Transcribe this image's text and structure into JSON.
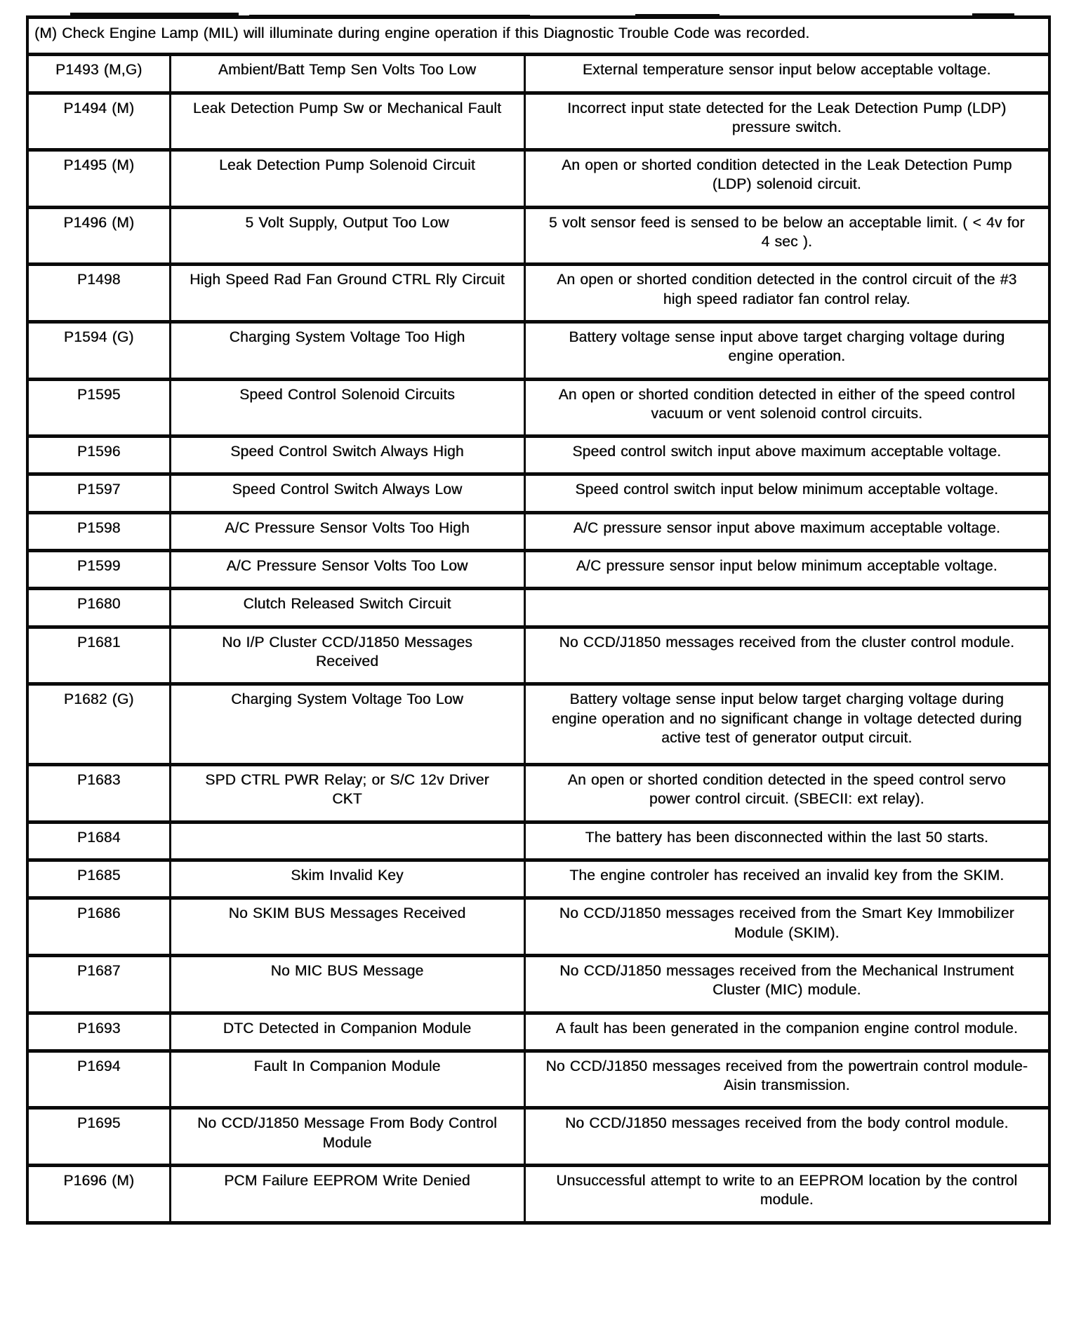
{
  "page": {
    "header_note": "(M) Check Engine Lamp (MIL) will illuminate during engine operation if this Diagnostic Trouble Code was recorded."
  },
  "table": {
    "columns": [
      "code",
      "name",
      "description"
    ],
    "rows": [
      {
        "code": "P1493 (M,G)",
        "name": "Ambient/Batt Temp Sen Volts Too Low",
        "description": "External temperature sensor input below acceptable voltage."
      },
      {
        "code": "P1494 (M)",
        "name": "Leak Detection Pump Sw or Mechanical Fault",
        "description": "Incorrect input state detected for the Leak Detection Pump (LDP) pressure switch."
      },
      {
        "code": "P1495 (M)",
        "name": "Leak Detection Pump Solenoid Circuit",
        "description": "An open or shorted condition detected in the Leak Detection Pump (LDP) solenoid circuit."
      },
      {
        "code": "P1496 (M)",
        "name": "5 Volt Supply, Output Too Low",
        "description": "5 volt sensor feed is sensed to be below an acceptable limit. ( < 4v for 4 sec )."
      },
      {
        "code": "P1498",
        "name": "High Speed Rad Fan Ground CTRL Rly Circuit",
        "description": "An open or shorted condition detected in the control circuit of the #3 high speed radiator fan control relay."
      },
      {
        "code": "P1594 (G)",
        "name": "Charging System Voltage Too High",
        "description": "Battery voltage sense input above target charging voltage during engine operation."
      },
      {
        "code": "P1595",
        "name": "Speed Control Solenoid Circuits",
        "description": "An open or shorted condition detected in either of the speed control vacuum or vent solenoid control circuits."
      },
      {
        "code": "P1596",
        "name": "Speed Control Switch Always High",
        "description": "Speed control switch input above maximum acceptable voltage."
      },
      {
        "code": "P1597",
        "name": "Speed Control Switch Always Low",
        "description": "Speed control switch input below minimum acceptable voltage."
      },
      {
        "code": "P1598",
        "name": "A/C Pressure Sensor Volts Too High",
        "description": "A/C pressure sensor input above maximum acceptable voltage."
      },
      {
        "code": "P1599",
        "name": "A/C Pressure Sensor Volts Too Low",
        "description": "A/C pressure sensor input below minimum acceptable voltage."
      },
      {
        "code": "P1680",
        "name": "Clutch Released Switch Circuit",
        "description": ""
      },
      {
        "code": "P1681",
        "name": "No I/P Cluster CCD/J1850 Messages Received",
        "description": "No CCD/J1850 messages received from the cluster control module."
      },
      {
        "code": "P1682 (G)",
        "name": "Charging System Voltage Too Low",
        "description": "Battery voltage sense input below target charging voltage during engine operation and no significant change in voltage detected during active test of generator output circuit."
      },
      {
        "code": "P1683",
        "name": "SPD CTRL PWR Relay; or S/C 12v Driver CKT",
        "description": "An open or shorted condition detected in the speed control servo power control circuit. (SBECII: ext relay)."
      },
      {
        "code": "P1684",
        "name": "",
        "description": "The battery has been disconnected within the last 50 starts."
      },
      {
        "code": "P1685",
        "name": "Skim Invalid Key",
        "description": "The engine controler has received an invalid key from the SKIM."
      },
      {
        "code": "P1686",
        "name": "No SKIM BUS Messages Received",
        "description": "No CCD/J1850 messages received from the Smart Key Immobilizer Module (SKIM)."
      },
      {
        "code": "P1687",
        "name": "No MIC BUS Message",
        "description": "No CCD/J1850 messages received from the Mechanical Instrument Cluster (MIC) module."
      },
      {
        "code": "P1693",
        "name": "DTC Detected in Companion Module",
        "description": "A fault has been generated in the companion engine control module."
      },
      {
        "code": "P1694",
        "name": "Fault In Companion Module",
        "description": "No CCD/J1850 messages received from the powertrain control module-Aisin transmission."
      },
      {
        "code": "P1695",
        "name": "No CCD/J1850 Message From Body Control Module",
        "description": "No CCD/J1850 messages received from the body control module."
      },
      {
        "code": "P1696 (M)",
        "name": "PCM Failure EEPROM Write Denied",
        "description": "Unsuccessful attempt to write to an EEPROM location by the control module."
      }
    ]
  }
}
